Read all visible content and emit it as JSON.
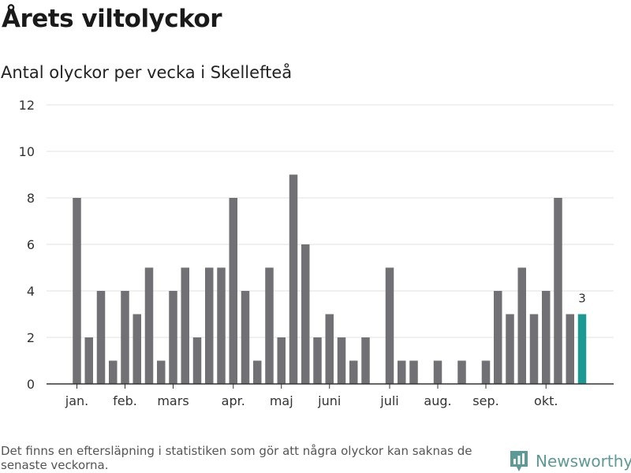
{
  "title": "Årets viltolyckor",
  "subtitle": "Antal olyckor per vecka i Skellefteå",
  "footnote": "Det finns en eftersläpning i statistiken som gör att några olyckor kan saknas de senaste veckorna.",
  "brand": {
    "name": "Newsworthy",
    "icon": "newsworthy-logo-icon",
    "color": "#5c9a95"
  },
  "chart_data": {
    "type": "bar",
    "title": "Antal olyckor per vecka i Skellefteå",
    "xlabel": "",
    "ylabel": "",
    "ylim": [
      0,
      12
    ],
    "yticks": [
      0,
      2,
      4,
      6,
      8,
      10,
      12
    ],
    "grid": true,
    "legend": "none",
    "bar_color": "#717075",
    "highlight_color": "#1a9a93",
    "month_labels": [
      {
        "label": "jan.",
        "at_week": 1
      },
      {
        "label": "feb.",
        "at_week": 5
      },
      {
        "label": "mars",
        "at_week": 9
      },
      {
        "label": "apr.",
        "at_week": 14
      },
      {
        "label": "maj",
        "at_week": 18
      },
      {
        "label": "juni",
        "at_week": 22
      },
      {
        "label": "juli",
        "at_week": 27
      },
      {
        "label": "aug.",
        "at_week": 31
      },
      {
        "label": "sep.",
        "at_week": 35
      },
      {
        "label": "okt.",
        "at_week": 40
      }
    ],
    "weeks": [
      1,
      2,
      3,
      4,
      5,
      6,
      7,
      8,
      9,
      10,
      11,
      12,
      13,
      14,
      15,
      16,
      17,
      18,
      19,
      20,
      21,
      22,
      23,
      24,
      25,
      26,
      27,
      28,
      29,
      30,
      31,
      32,
      33,
      34,
      35,
      36,
      37,
      38,
      39,
      40,
      41,
      42,
      43
    ],
    "values": [
      8,
      2,
      4,
      1,
      4,
      3,
      5,
      1,
      4,
      5,
      2,
      5,
      5,
      8,
      4,
      1,
      5,
      2,
      9,
      6,
      2,
      3,
      2,
      1,
      2,
      0,
      5,
      1,
      1,
      0,
      1,
      0,
      1,
      0,
      1,
      4,
      3,
      5,
      3,
      4,
      8,
      3,
      3
    ],
    "highlight_last": true,
    "last_label": "3"
  }
}
